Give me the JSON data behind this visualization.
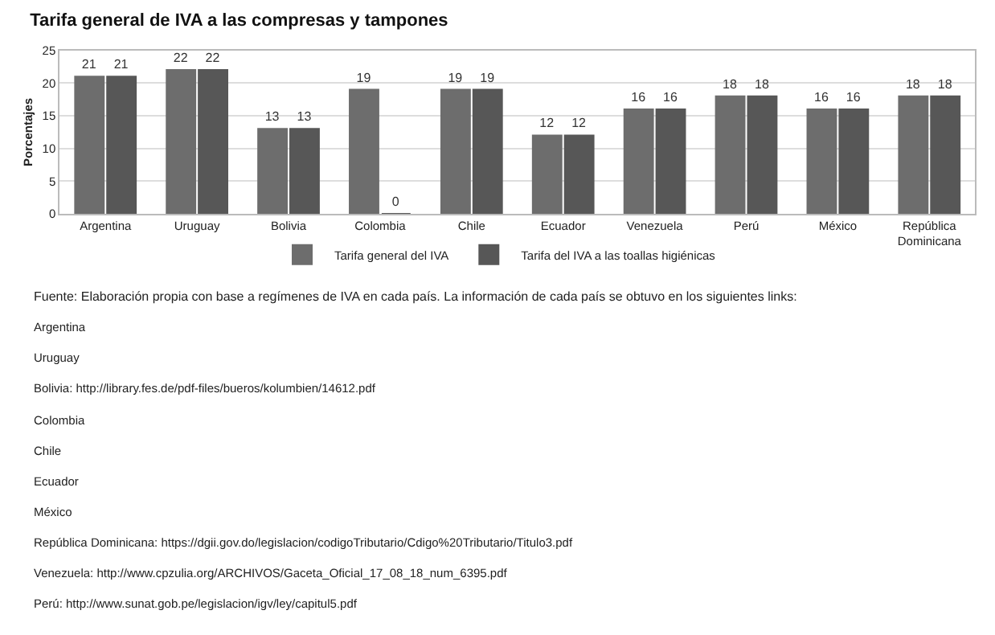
{
  "chart_data": {
    "type": "bar",
    "title": "Tarifa general de IVA a las compresas y tampones",
    "ylabel": "Porcentajes",
    "categories": [
      "Argentina",
      "Uruguay",
      "Bolivia",
      "Colombia",
      "Chile",
      "Ecuador",
      "Venezuela",
      "Perú",
      "México",
      "República Dominicana"
    ],
    "series": [
      {
        "name": "Tarifa general del IVA",
        "color": "#6d6d6d",
        "values": [
          21,
          22,
          13,
          19,
          19,
          12,
          16,
          18,
          16,
          18
        ]
      },
      {
        "name": "Tarifa del IVA a las toallas higiénicas",
        "color": "#575757",
        "values": [
          21,
          22,
          13,
          0,
          19,
          12,
          16,
          18,
          16,
          18
        ]
      }
    ],
    "ylim": [
      0,
      25
    ],
    "yticks": [
      0,
      5,
      10,
      15,
      20,
      25
    ],
    "grid": "y",
    "legend": "bottom",
    "data_labels": true,
    "annotations": [
      "Fuente: Elaboración propia con base a regímenes de IVA en cada país. La información de cada país se obtuvo en los siguientes links:",
      "Argentina",
      "Uruguay",
      "Bolivia: http://library.fes.de/pdf-files/bueros/kolumbien/14612.pdf",
      "Colombia",
      "Chile",
      "Ecuador",
      "México",
      "República Dominicana: https://dgii.gov.do/legislacion/codigoTributario/Cdigo%20Tributario/Titulo3.pdf",
      "Venezuela: http://www.cpzulia.org/ARCHIVOS/Gaceta_Oficial_17_08_18_num_6395.pdf",
      "Perú: http://www.sunat.gob.pe/legislacion/igv/ley/capitul5.pdf"
    ]
  }
}
